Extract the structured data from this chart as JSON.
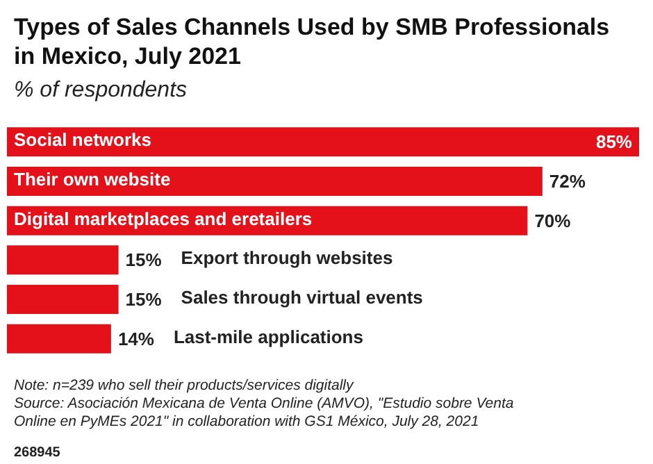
{
  "chart_data": {
    "type": "bar",
    "orientation": "horizontal",
    "title": "Types of Sales Channels Used by SMB Professionals in Mexico, July 2021",
    "subtitle": "% of respondents",
    "categories": [
      "Social networks",
      "Their own website",
      "Digital marketplaces and eretailers",
      "Export through websites",
      "Sales through virtual events",
      "Last-mile applications"
    ],
    "values": [
      85,
      72,
      70,
      15,
      15,
      14
    ],
    "color": "#e4111b",
    "value_labels": [
      "85%",
      "72%",
      "70%",
      "15%",
      "15%",
      "14%"
    ],
    "annotations": [
      "Note: n=239 who sell their products/services digitally",
      "Source: Asociación Mexicana de Venta Online (AMVO), \"Estudio sobre Venta Online en PyMEs 2021\" in collaboration with GS1 México, July 28, 2021",
      "268945"
    ]
  }
}
